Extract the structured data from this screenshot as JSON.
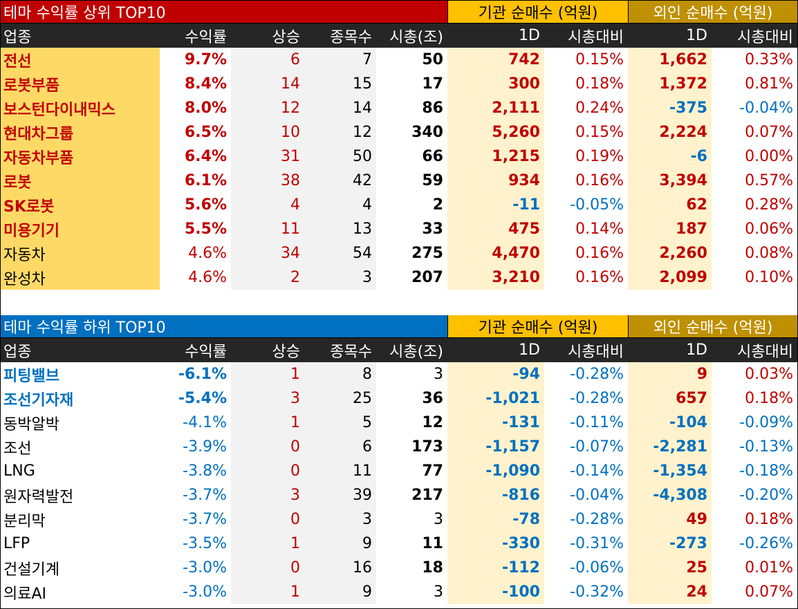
{
  "colors": {
    "top_title_bg": "#c00000",
    "bottom_title_bg": "#0070c0",
    "institution_header": "#ffc000",
    "foreign_header": "#bf9000",
    "up": "#c00000",
    "down": "#0070c0"
  },
  "top": {
    "title": "테마 수익률 상위 TOP10",
    "institution_title": "기관 순매수 (억원)",
    "foreign_title": "외인 순매수 (억원)",
    "headers": [
      "업종",
      "수익률",
      "상승",
      "종목수",
      "시총(조)",
      "1D",
      "시총대비",
      "1D",
      "시총대비"
    ],
    "rows": [
      {
        "name": "전선",
        "ret": "9.7%",
        "up": "6",
        "cnt": "7",
        "cap": "50",
        "inst": "742",
        "inst_pct": "0.15%",
        "for": "1,662",
        "for_pct": "0.33%"
      },
      {
        "name": "로봇부품",
        "ret": "8.4%",
        "up": "14",
        "cnt": "15",
        "cap": "17",
        "inst": "300",
        "inst_pct": "0.18%",
        "for": "1,372",
        "for_pct": "0.81%"
      },
      {
        "name": "보스턴다이내믹스",
        "ret": "8.0%",
        "up": "12",
        "cnt": "14",
        "cap": "86",
        "inst": "2,111",
        "inst_pct": "0.24%",
        "for": "-375",
        "for_pct": "-0.04%"
      },
      {
        "name": "현대차그룹",
        "ret": "6.5%",
        "up": "10",
        "cnt": "12",
        "cap": "340",
        "inst": "5,260",
        "inst_pct": "0.15%",
        "for": "2,224",
        "for_pct": "0.07%"
      },
      {
        "name": "자동차부품",
        "ret": "6.4%",
        "up": "31",
        "cnt": "50",
        "cap": "66",
        "inst": "1,215",
        "inst_pct": "0.19%",
        "for": "-6",
        "for_pct": "0.00%"
      },
      {
        "name": "로봇",
        "ret": "6.1%",
        "up": "38",
        "cnt": "42",
        "cap": "59",
        "inst": "934",
        "inst_pct": "0.16%",
        "for": "3,394",
        "for_pct": "0.57%"
      },
      {
        "name": "SK로봇",
        "ret": "5.6%",
        "up": "4",
        "cnt": "4",
        "cap": "2",
        "inst": "-11",
        "inst_pct": "-0.05%",
        "for": "62",
        "for_pct": "0.28%"
      },
      {
        "name": "미용기기",
        "ret": "5.5%",
        "up": "11",
        "cnt": "13",
        "cap": "33",
        "inst": "475",
        "inst_pct": "0.14%",
        "for": "187",
        "for_pct": "0.06%"
      },
      {
        "name": "자동차",
        "ret": "4.6%",
        "up": "34",
        "cnt": "54",
        "cap": "275",
        "inst": "4,470",
        "inst_pct": "0.16%",
        "for": "2,260",
        "for_pct": "0.08%"
      },
      {
        "name": "완성차",
        "ret": "4.6%",
        "up": "2",
        "cnt": "3",
        "cap": "207",
        "inst": "3,210",
        "inst_pct": "0.16%",
        "for": "2,099",
        "for_pct": "0.10%"
      }
    ]
  },
  "bottom": {
    "title": "테마 수익률 하위 TOP10",
    "institution_title": "기관 순매수 (억원)",
    "foreign_title": "외인 순매수 (억원)",
    "headers": [
      "업종",
      "수익률",
      "상승",
      "종목수",
      "시총(조)",
      "1D",
      "시총대비",
      "1D",
      "시총대비"
    ],
    "rows": [
      {
        "name": "피팅밸브",
        "ret": "-6.1%",
        "up": "1",
        "cnt": "8",
        "cap": "3",
        "inst": "-94",
        "inst_pct": "-0.28%",
        "for": "9",
        "for_pct": "0.03%"
      },
      {
        "name": "조선기자재",
        "ret": "-5.4%",
        "up": "3",
        "cnt": "25",
        "cap": "36",
        "inst": "-1,021",
        "inst_pct": "-0.28%",
        "for": "657",
        "for_pct": "0.18%"
      },
      {
        "name": "동박알박",
        "ret": "-4.1%",
        "up": "1",
        "cnt": "5",
        "cap": "12",
        "inst": "-131",
        "inst_pct": "-0.11%",
        "for": "-104",
        "for_pct": "-0.09%"
      },
      {
        "name": "조선",
        "ret": "-3.9%",
        "up": "0",
        "cnt": "6",
        "cap": "173",
        "inst": "-1,157",
        "inst_pct": "-0.07%",
        "for": "-2,281",
        "for_pct": "-0.13%"
      },
      {
        "name": "LNG",
        "ret": "-3.8%",
        "up": "0",
        "cnt": "11",
        "cap": "77",
        "inst": "-1,090",
        "inst_pct": "-0.14%",
        "for": "-1,354",
        "for_pct": "-0.18%"
      },
      {
        "name": "원자력발전",
        "ret": "-3.7%",
        "up": "3",
        "cnt": "39",
        "cap": "217",
        "inst": "-816",
        "inst_pct": "-0.04%",
        "for": "-4,308",
        "for_pct": "-0.20%"
      },
      {
        "name": "분리막",
        "ret": "-3.7%",
        "up": "0",
        "cnt": "3",
        "cap": "3",
        "inst": "-78",
        "inst_pct": "-0.28%",
        "for": "49",
        "for_pct": "0.18%"
      },
      {
        "name": "LFP",
        "ret": "-3.5%",
        "up": "1",
        "cnt": "9",
        "cap": "11",
        "inst": "-330",
        "inst_pct": "-0.31%",
        "for": "-273",
        "for_pct": "-0.26%"
      },
      {
        "name": "건설기계",
        "ret": "-3.0%",
        "up": "0",
        "cnt": "16",
        "cap": "18",
        "inst": "-112",
        "inst_pct": "-0.06%",
        "for": "25",
        "for_pct": "0.01%"
      },
      {
        "name": "의료AI",
        "ret": "-3.0%",
        "up": "1",
        "cnt": "9",
        "cap": "3",
        "inst": "-100",
        "inst_pct": "-0.32%",
        "for": "24",
        "for_pct": "0.07%"
      }
    ]
  }
}
